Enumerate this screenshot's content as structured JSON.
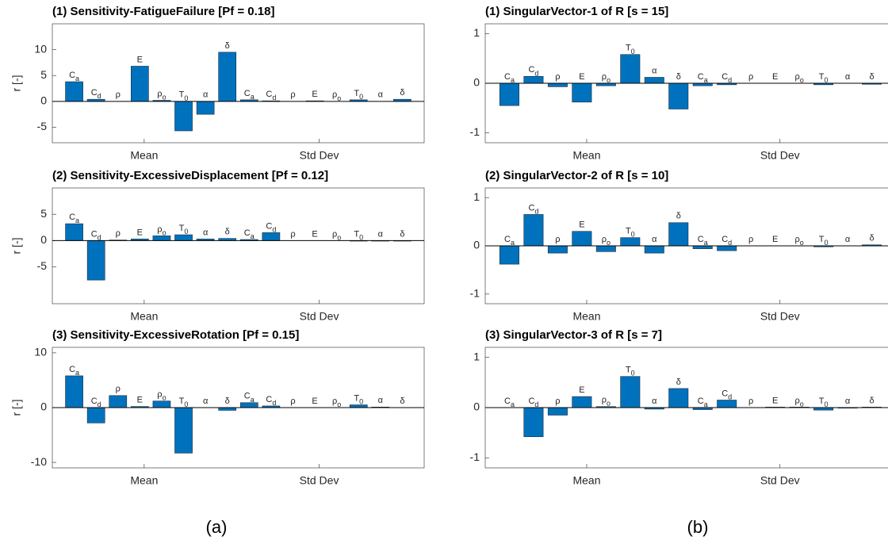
{
  "panel_labels": [
    "(a)",
    "(b)"
  ],
  "chart_data": [
    {
      "type": "bar",
      "title": "(1) Sensitivity-FatigueFailure [Pf = 0.18]",
      "ylabel": "r [-]",
      "groups": [
        "Mean",
        "Std Dev"
      ],
      "categories": [
        "Ca",
        "Cd",
        "ρ",
        "E",
        "ρo",
        "T0",
        "α",
        "δ",
        "Ca",
        "Cd",
        "ρ",
        "E",
        "ρo",
        "T0",
        "α",
        "δ"
      ],
      "values": [
        3.8,
        0.4,
        0,
        6.8,
        0.2,
        -5.7,
        -2.5,
        9.5,
        0.3,
        0.1,
        0,
        0.1,
        0,
        0.3,
        0,
        0.4
      ],
      "color": "#0072bd",
      "ylim": [
        -8,
        15
      ],
      "yticks": [
        -5,
        0,
        5,
        10
      ]
    },
    {
      "type": "bar",
      "title": "(2) Sensitivity-ExcessiveDisplacement [Pf = 0.12]",
      "ylabel": "r [-]",
      "groups": [
        "Mean",
        "Std Dev"
      ],
      "categories": [
        "Ca",
        "Cd",
        "ρ",
        "E",
        "ρo",
        "T0",
        "α",
        "δ",
        "Ca",
        "Cd",
        "ρ",
        "E",
        "ρo",
        "T0",
        "α",
        "δ"
      ],
      "values": [
        3.2,
        -7.5,
        0.1,
        0.3,
        0.9,
        1.1,
        0.3,
        0.4,
        0.2,
        1.5,
        0,
        0,
        0,
        -0.1,
        -0.1,
        -0.1
      ],
      "color": "#0072bd",
      "ylim": [
        -12,
        10
      ],
      "yticks": [
        -5,
        0,
        5
      ]
    },
    {
      "type": "bar",
      "title": "(3) Sensitivity-ExcessiveRotation [Pf = 0.15]",
      "ylabel": "r [-]",
      "groups": [
        "Mean",
        "Std Dev"
      ],
      "categories": [
        "Ca",
        "Cd",
        "ρ",
        "E",
        "ρo",
        "T0",
        "α",
        "δ",
        "Ca",
        "Cd",
        "ρ",
        "E",
        "ρo",
        "T0",
        "α",
        "δ"
      ],
      "values": [
        5.8,
        -2.8,
        2.2,
        0.2,
        1.2,
        -8.3,
        0,
        -0.5,
        0.9,
        0.3,
        0,
        0,
        0,
        0.5,
        0.1,
        0
      ],
      "color": "#0072bd",
      "ylim": [
        -11,
        11
      ],
      "yticks": [
        -10,
        0,
        10
      ]
    },
    {
      "type": "bar",
      "title": "(1) SingularVector-1 of R [s = 15]",
      "groups": [
        "Mean",
        "Std Dev"
      ],
      "categories": [
        "Ca",
        "Cd",
        "ρ",
        "E",
        "ρo",
        "T0",
        "α",
        "δ",
        "Ca",
        "Cd",
        "ρ",
        "E",
        "ρo",
        "T0",
        "α",
        "δ"
      ],
      "values": [
        -0.45,
        0.14,
        -0.07,
        -0.38,
        -0.05,
        0.58,
        0.12,
        -0.52,
        -0.05,
        -0.03,
        0,
        0,
        0,
        -0.03,
        0,
        -0.02
      ],
      "color": "#0072bd",
      "ylim": [
        -1.2,
        1.2
      ],
      "yticks": [
        -1,
        0,
        1
      ]
    },
    {
      "type": "bar",
      "title": "(2) SingularVector-2 of R [s = 10]",
      "groups": [
        "Mean",
        "Std Dev"
      ],
      "categories": [
        "Ca",
        "Cd",
        "ρ",
        "E",
        "ρo",
        "T0",
        "α",
        "δ",
        "Ca",
        "Cd",
        "ρ",
        "E",
        "ρo",
        "T0",
        "α",
        "δ"
      ],
      "values": [
        -0.38,
        0.65,
        -0.15,
        0.3,
        -0.12,
        0.17,
        -0.15,
        0.48,
        -0.06,
        -0.1,
        0,
        0,
        0,
        -0.02,
        0,
        0.02
      ],
      "color": "#0072bd",
      "ylim": [
        -1.2,
        1.2
      ],
      "yticks": [
        -1,
        0,
        1
      ]
    },
    {
      "type": "bar",
      "title": "(3) SingularVector-3 of R [s = 7]",
      "groups": [
        "Mean",
        "Std Dev"
      ],
      "categories": [
        "Ca",
        "Cd",
        "ρ",
        "E",
        "ρo",
        "T0",
        "α",
        "δ",
        "Ca",
        "Cd",
        "ρ",
        "E",
        "ρo",
        "T0",
        "α",
        "δ"
      ],
      "values": [
        0,
        -0.58,
        -0.15,
        0.22,
        0.02,
        0.62,
        -0.03,
        0.38,
        -0.04,
        0.15,
        0,
        0.01,
        0.01,
        -0.05,
        -0.01,
        0.01
      ],
      "color": "#0072bd",
      "ylim": [
        -1.2,
        1.2
      ],
      "yticks": [
        -1,
        0,
        1
      ]
    }
  ]
}
